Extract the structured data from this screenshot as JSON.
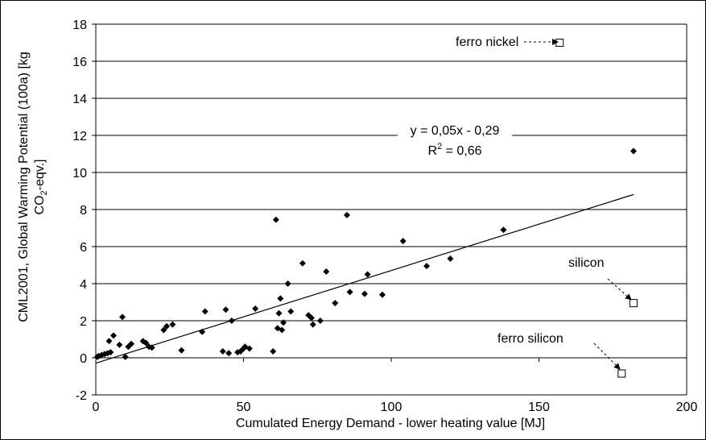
{
  "chart_data": {
    "type": "scatter",
    "xlabel": "Cumulated Energy Demand - lower heating value [MJ]",
    "ylabel_line1": "CML2001, Global Warming Potential (100a) [kg",
    "ylabel_line2_pre": "CO",
    "ylabel_line2_sub": "2",
    "ylabel_line2_post": "-eqv.]",
    "xlim": [
      0,
      200
    ],
    "ylim": [
      -2,
      18
    ],
    "x_ticks": [
      "0",
      "50",
      "100",
      "150",
      "200"
    ],
    "y_ticks": [
      "-2",
      "0",
      "2",
      "4",
      "6",
      "8",
      "10",
      "12",
      "14",
      "16",
      "18"
    ],
    "grid": "horizontal",
    "points": [
      [
        0.5,
        0.05
      ],
      [
        1,
        0.1
      ],
      [
        2,
        0.15
      ],
      [
        3,
        0.2
      ],
      [
        4,
        0.25
      ],
      [
        4.5,
        0.9
      ],
      [
        5,
        0.3
      ],
      [
        6,
        1.2
      ],
      [
        8,
        0.7
      ],
      [
        9,
        2.2
      ],
      [
        10,
        0.05
      ],
      [
        11,
        0.6
      ],
      [
        12,
        0.75
      ],
      [
        16,
        0.9
      ],
      [
        17,
        0.8
      ],
      [
        18,
        0.6
      ],
      [
        19,
        0.55
      ],
      [
        23,
        1.5
      ],
      [
        24,
        1.7
      ],
      [
        26,
        1.8
      ],
      [
        29,
        0.4
      ],
      [
        36,
        1.4
      ],
      [
        37,
        2.5
      ],
      [
        43,
        0.35
      ],
      [
        44,
        2.6
      ],
      [
        45,
        0.25
      ],
      [
        46,
        2.0
      ],
      [
        48,
        0.3
      ],
      [
        49,
        0.35
      ],
      [
        50,
        0.5
      ],
      [
        50.5,
        0.6
      ],
      [
        52,
        0.5
      ],
      [
        54,
        2.65
      ],
      [
        60,
        0.35
      ],
      [
        61,
        7.45
      ],
      [
        61.5,
        1.6
      ],
      [
        62,
        2.4
      ],
      [
        62.5,
        3.2
      ],
      [
        63,
        1.5
      ],
      [
        63.5,
        1.9
      ],
      [
        65,
        4.0
      ],
      [
        66,
        2.5
      ],
      [
        70,
        5.1
      ],
      [
        72,
        2.3
      ],
      [
        73,
        2.15
      ],
      [
        73.5,
        1.8
      ],
      [
        76,
        2.0
      ],
      [
        78,
        4.65
      ],
      [
        81,
        2.95
      ],
      [
        85,
        7.7
      ],
      [
        86,
        3.55
      ],
      [
        91,
        3.45
      ],
      [
        92,
        4.5
      ],
      [
        97,
        3.4
      ],
      [
        104,
        6.3
      ],
      [
        112,
        4.95
      ],
      [
        120,
        5.35
      ],
      [
        138,
        6.9
      ],
      [
        182,
        11.15
      ]
    ],
    "outliers": [
      {
        "label": "ferro nickel",
        "x": 157,
        "y": 17.0
      },
      {
        "label": "silicon",
        "x": 182,
        "y": 2.95
      },
      {
        "label": "ferro silicon",
        "x": 178,
        "y": -0.85
      }
    ],
    "trendline": {
      "slope": 0.05,
      "intercept": -0.29,
      "equation": "y = 0,05x - 0,29",
      "r2_prefix": "R",
      "r2_sup": "2",
      "r2_suffix": " = 0,66",
      "x_range": [
        0,
        182
      ]
    },
    "colors": {
      "points": "#000000",
      "grid": "#000000",
      "line": "#000000",
      "outlier_fill": "#ffffff"
    }
  }
}
